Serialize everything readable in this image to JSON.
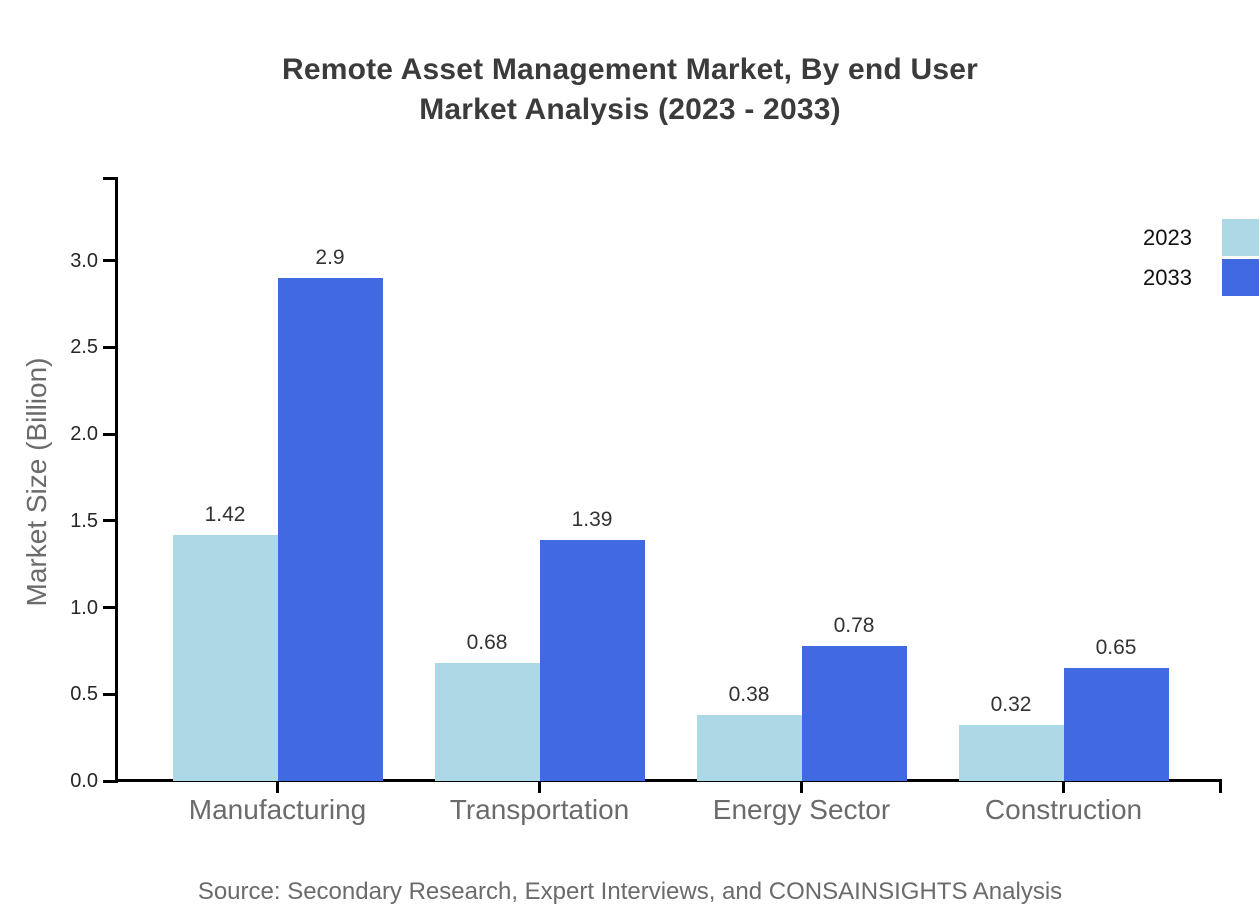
{
  "title": {
    "line1": "Remote Asset Management Market, By end User",
    "line2": "Market Analysis (2023 - 2033)"
  },
  "source": "Source: Secondary Research, Expert Interviews, and CONSAINSIGHTS Analysis",
  "chart_data": {
    "type": "bar",
    "title": "Remote Asset Management Market, By end User Market Analysis (2023 - 2033)",
    "categories": [
      "Manufacturing",
      "Transportation",
      "Energy Sector",
      "Construction"
    ],
    "series": [
      {
        "name": "2023",
        "color": "#ADD8E6",
        "values": [
          1.42,
          0.68,
          0.38,
          0.32
        ]
      },
      {
        "name": "2033",
        "color": "#4169E1",
        "values": [
          2.9,
          1.39,
          0.78,
          0.65
        ]
      }
    ],
    "xlabel": "",
    "ylabel": "Market Size (Billion)",
    "y_ticks": [
      "0.0",
      "0.5",
      "1.0",
      "1.5",
      "2.0",
      "2.5",
      "3.0"
    ],
    "ylim": [
      0,
      3.4
    ],
    "grid": false,
    "bar_value_labels": true,
    "legend_position": "top-right-edge",
    "colors": {
      "axis": "#000000",
      "title_text": "#3b3b3b",
      "muted_text": "#6b6b6b",
      "tick_text": "#262626",
      "value_text": "#333333",
      "background": "#ffffff"
    }
  }
}
